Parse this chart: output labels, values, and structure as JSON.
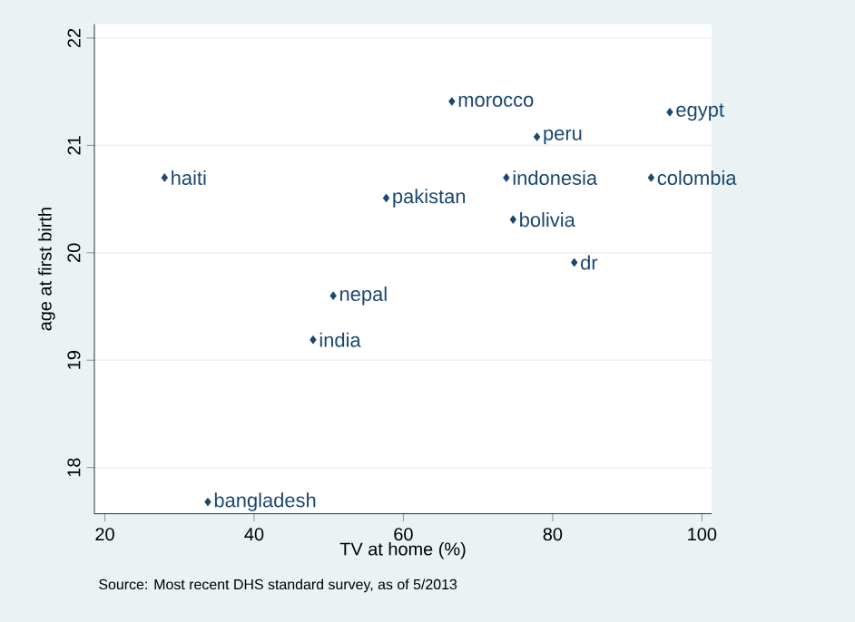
{
  "chart_data": {
    "type": "scatter",
    "xlabel": "TV at home (%)",
    "ylabel": "age at first birth",
    "xlim": [
      18.6,
      101.3
    ],
    "ylim": [
      17.57,
      22.13
    ],
    "xticks": [
      20,
      40,
      60,
      80,
      100
    ],
    "yticks": [
      18,
      19,
      20,
      21,
      22
    ],
    "grid": "y",
    "marker": "diamond",
    "series": [
      {
        "color": "#1a476f",
        "x": [
          66.5,
          77.9,
          95.7,
          28.0,
          57.7,
          73.8,
          93.2,
          74.7,
          82.9,
          50.6,
          47.9,
          33.8
        ],
        "values": [
          21.41,
          21.08,
          21.31,
          20.7,
          20.51,
          20.7,
          20.7,
          20.31,
          19.91,
          19.6,
          19.19,
          17.68
        ]
      }
    ],
    "annotations": [
      {
        "text": "morocco",
        "x": 66.5,
        "y": 21.41
      },
      {
        "text": "peru",
        "x": 77.9,
        "y": 21.08
      },
      {
        "text": "egypt",
        "x": 95.7,
        "y": 21.31
      },
      {
        "text": "haiti",
        "x": 28.0,
        "y": 20.7
      },
      {
        "text": "pakistan",
        "x": 57.7,
        "y": 20.51
      },
      {
        "text": "indonesia",
        "x": 73.8,
        "y": 20.7
      },
      {
        "text": "colombia",
        "x": 93.2,
        "y": 20.7
      },
      {
        "text": "bolivia",
        "x": 74.7,
        "y": 20.31
      },
      {
        "text": "dr",
        "x": 82.9,
        "y": 19.91
      },
      {
        "text": "nepal",
        "x": 50.6,
        "y": 19.6
      },
      {
        "text": "india",
        "x": 47.9,
        "y": 19.19
      },
      {
        "text": "bangladesh",
        "x": 33.8,
        "y": 17.68
      },
      "Source: Most recent DHS standard survey, as of 5/2013"
    ]
  }
}
